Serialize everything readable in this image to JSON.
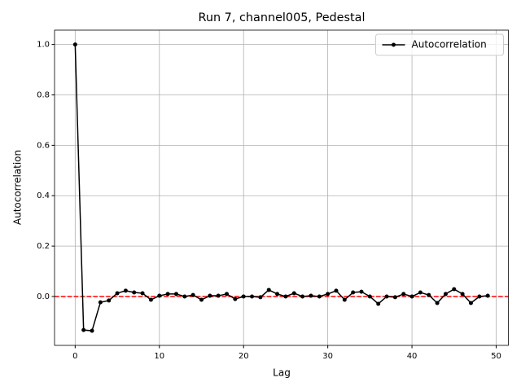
{
  "chart_data": {
    "type": "line",
    "title": "Run 7, channel005, Pedestal",
    "x_label": "Lag",
    "y_label": "Autocorrelation",
    "x": [
      0,
      1,
      2,
      3,
      4,
      5,
      6,
      7,
      8,
      9,
      10,
      11,
      12,
      13,
      14,
      15,
      16,
      17,
      18,
      19,
      20,
      21,
      22,
      23,
      24,
      25,
      26,
      27,
      28,
      29,
      30,
      31,
      32,
      33,
      34,
      35,
      36,
      37,
      38,
      39,
      40,
      41,
      42,
      43,
      44,
      45,
      46,
      47,
      48,
      49
    ],
    "series": [
      {
        "name": "Autocorrelation",
        "color": "#000000",
        "values": [
          1.0,
          -0.133,
          -0.136,
          -0.023,
          -0.016,
          0.013,
          0.023,
          0.016,
          0.013,
          -0.013,
          0.003,
          0.01,
          0.01,
          0.0,
          0.006,
          -0.013,
          0.003,
          0.003,
          0.01,
          -0.01,
          0.0,
          0.0,
          -0.003,
          0.026,
          0.01,
          0.0,
          0.013,
          0.0,
          0.003,
          0.0,
          0.01,
          0.023,
          -0.013,
          0.016,
          0.019,
          0.0,
          -0.029,
          0.0,
          -0.003,
          0.01,
          0.0,
          0.016,
          0.006,
          -0.026,
          0.01,
          0.029,
          0.01,
          -0.026,
          0.0,
          0.003
        ]
      }
    ],
    "reference_line": {
      "value": 0,
      "color": "#ff0000"
    },
    "xlim": [
      -2.45,
      51.45
    ],
    "ylim": [
      -0.194,
      1.057
    ],
    "xticks": [
      0,
      10,
      20,
      30,
      40,
      50
    ],
    "yticks": [
      {
        "value": 0,
        "label": "0.0"
      },
      0.2,
      0.4,
      0.6,
      0.8,
      {
        "value": 1,
        "label": "1.0"
      }
    ],
    "grid": true,
    "legend": "upper right"
  }
}
